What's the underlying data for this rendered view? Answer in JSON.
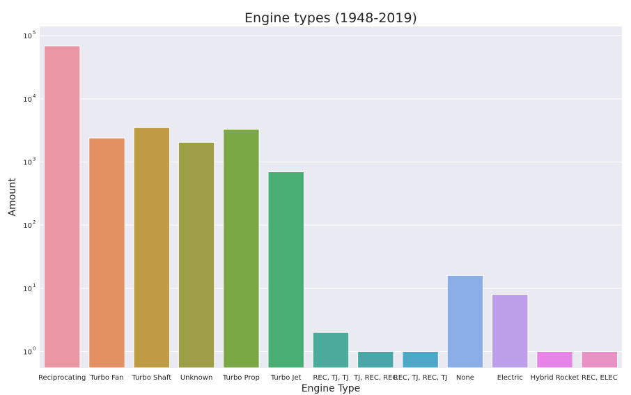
{
  "chart_data": {
    "type": "bar",
    "title": "Engine types (1948-2019)",
    "xlabel": "Engine Type",
    "ylabel": "Amount",
    "yscale": "log",
    "ylim": [
      0.55,
      140000
    ],
    "grid": true,
    "background": "#eaeaf2",
    "y_ticks": [
      {
        "base": "10",
        "exp": "0",
        "value": 1
      },
      {
        "base": "10",
        "exp": "1",
        "value": 10
      },
      {
        "base": "10",
        "exp": "2",
        "value": 100
      },
      {
        "base": "10",
        "exp": "3",
        "value": 1000
      },
      {
        "base": "10",
        "exp": "4",
        "value": 10000
      },
      {
        "base": "10",
        "exp": "5",
        "value": 100000
      }
    ],
    "categories": [
      "Reciprocating",
      "Turbo Fan",
      "Turbo Shaft",
      "Unknown",
      "Turbo Prop",
      "Turbo Jet",
      "REC, TJ, TJ",
      "TJ, REC, REC",
      "REC, TJ, REC, TJ",
      "None",
      "Electric",
      "Hybrid Rocket",
      "REC, ELEC"
    ],
    "values": [
      69000,
      2400,
      3500,
      2050,
      3300,
      700,
      2,
      1,
      1,
      16,
      8,
      1,
      1
    ],
    "colors": [
      "#ea96a3",
      "#e39162",
      "#bf9b46",
      "#9d9e45",
      "#7aa845",
      "#48ae74",
      "#4aaa9b",
      "#4aa7a9",
      "#4da8c8",
      "#8caee7",
      "#bc9fe8",
      "#e784e8",
      "#e891c5"
    ]
  }
}
